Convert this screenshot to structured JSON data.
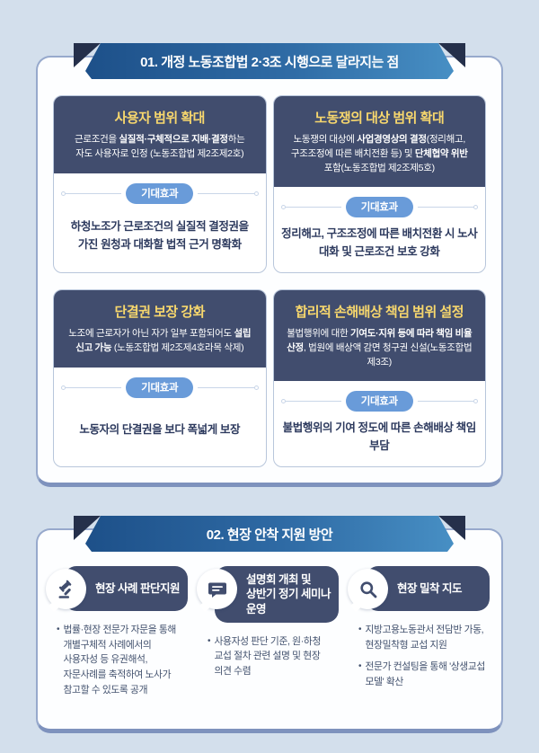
{
  "page": {
    "bullet_marker": "•"
  },
  "colors": {
    "background": "#d3dfec",
    "panel_border": "#8ba0c6",
    "card_navy": "#414d6e",
    "title_yellow": "#f7d76d",
    "badge_blue": "#699bd9",
    "ribbon_gradient_dark": "#1d5089",
    "ribbon_gradient_light": "#478fc4",
    "ribbon_fold": "#25304b",
    "effect_text_navy": "#2d3a5e"
  },
  "section1": {
    "ribbon_title": "01. 개정 노동조합법 2·3조 시행으로 달라지는 점",
    "cards": [
      {
        "title": "사용자 범위 확대",
        "body": [
          {
            "t": "근로조건을 ",
            "b": false
          },
          {
            "t": "실질적·구체적으로 지배·결정",
            "b": true
          },
          {
            "t": "하는 자도 사용자로 인정 (노동조합법 제2조제2호)",
            "b": false
          }
        ],
        "badge": "기대효과",
        "effect": "하청노조가 근로조건의 실질적 결정권을 가진 원청과 대화할 법적 근거 명확화"
      },
      {
        "title": "노동쟁의 대상 범위 확대",
        "body": [
          {
            "t": "노동쟁의 대상에 ",
            "b": false
          },
          {
            "t": "사업경영상의 결정",
            "b": true
          },
          {
            "t": "(정리해고, 구조조정에 따른 배치전환 등) 및 ",
            "b": false
          },
          {
            "t": "단체협약 위반",
            "b": true
          },
          {
            "t": " 포함(노동조합법 제2조제5호)",
            "b": false
          }
        ],
        "badge": "기대효과",
        "effect": "정리해고, 구조조정에 따른 배치전환 시 노사 대화 및 근로조건 보호 강화"
      },
      {
        "title": "단결권 보장 강화",
        "body": [
          {
            "t": "노조에 근로자가 아닌 자가 일부 포함되어도 ",
            "b": false
          },
          {
            "t": "설립 신고 가능",
            "b": true
          },
          {
            "t": " (노동조합법 제2조제4호라목 삭제)",
            "b": false
          }
        ],
        "badge": "기대효과",
        "effect": "노동자의 단결권을 보다 폭넓게 보장"
      },
      {
        "title": "합리적 손해배상 책임 범위 설정",
        "body": [
          {
            "t": "불법행위에 대한 ",
            "b": false
          },
          {
            "t": "기여도·지위 등에 따라 책임 비율 산정",
            "b": true
          },
          {
            "t": ", 법원에 배상액 감면 청구권 신설(노동조합법 제3조)",
            "b": false
          }
        ],
        "badge": "기대효과",
        "effect": "불법행위의 기여 정도에 따른 손해배상 책임 부담"
      }
    ]
  },
  "section2": {
    "ribbon_title": "02. 현장 안착 지원 방안",
    "columns": [
      {
        "icon": "gavel-icon",
        "title": "현장 사례 판단지원",
        "bullets": [
          "법률·현장 전문가 자문을 통해 개별구체적 사례에서의 사용자성 등 유권해석, 자문사례를 축적하여 노사가 참고할 수 있도록 공개"
        ]
      },
      {
        "icon": "speech-bubble-icon",
        "title": "설명회 개최 및 상반기 정기 세미나 운영",
        "bullets": [
          "사용자성 판단 기준, 원·하청 교섭 절차 관련 설명 및 현장 의견 수렴"
        ]
      },
      {
        "icon": "magnifier-icon",
        "title": "현장 밀착 지도",
        "bullets": [
          "지방고용노동관서 전담반 가동, 현장밀착형 교섭 지원",
          "전문가 컨설팅을 통해 '상생교섭 모델' 확산"
        ]
      }
    ]
  }
}
